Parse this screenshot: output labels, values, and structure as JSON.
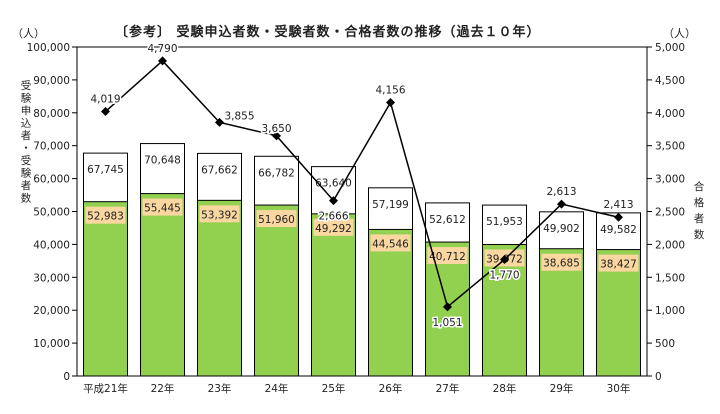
{
  "chart_data": {
    "type": "bar",
    "title": "〔参考〕 受験申込者数・受験者数・合格者数の推移（過去１０年）",
    "left_unit": "（人）",
    "right_unit": "（人）",
    "ylabel_left": "受験申込者・受験者数",
    "ylabel_right": "合格者数",
    "ylim_left": [
      0,
      100000
    ],
    "ylim_right": [
      0,
      5000
    ],
    "left_ticks": [
      "0",
      "10,000",
      "20,000",
      "30,000",
      "40,000",
      "50,000",
      "60,000",
      "70,000",
      "80,000",
      "90,000",
      "100,000"
    ],
    "right_ticks": [
      "0",
      "500",
      "1,000",
      "1,500",
      "2,000",
      "2,500",
      "3,000",
      "3,500",
      "4,000",
      "4,500",
      "5,000"
    ],
    "categories": [
      "平成21年",
      "22年",
      "23年",
      "24年",
      "25年",
      "26年",
      "27年",
      "28年",
      "29年",
      "30年"
    ],
    "series": [
      {
        "values": [
          67745,
          70648,
          67662,
          66782,
          63640,
          57199,
          52612,
          51953,
          49902,
          49582
        ],
        "labels": [
          "67,745",
          "70,648",
          "67,662",
          "66,782",
          "63,640",
          "57,199",
          "52,612",
          "51,953",
          "49,902",
          "49,582"
        ],
        "color": "#ffffff"
      },
      {
        "values": [
          52983,
          55445,
          53392,
          51960,
          49292,
          44546,
          40712,
          39972,
          38685,
          38427
        ],
        "labels": [
          "52,983",
          "55,445",
          "53,392",
          "51,960",
          "49,292",
          "44,546",
          "40,712",
          "39,972",
          "38,685",
          "38,427"
        ],
        "color": "#92d050"
      },
      {
        "axis": "right",
        "values": [
          4019,
          4790,
          3855,
          3650,
          2666,
          4156,
          1051,
          1770,
          2613,
          2413
        ],
        "labels": [
          "4,019",
          "4,790",
          "3,855",
          "3,650",
          "2,666",
          "4,156",
          "1,051",
          "1,770",
          "2,613",
          "2,413"
        ],
        "color": "#000000"
      }
    ],
    "label_box_color": "#fad7a0",
    "grid": false
  }
}
